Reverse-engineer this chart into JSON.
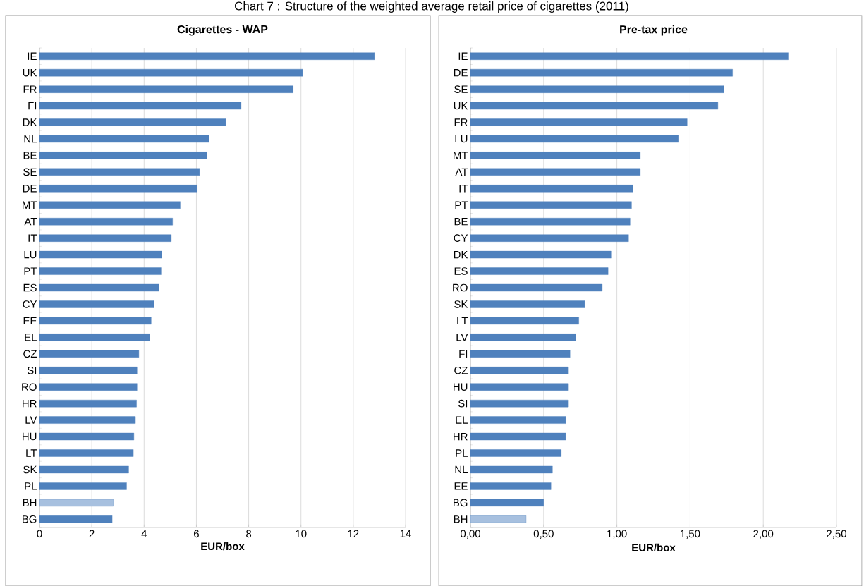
{
  "chart_data": [
    {
      "type": "bar",
      "orientation": "horizontal",
      "title": "Cigarettes - WAP",
      "xlabel": "EUR/box",
      "annotations": [
        "Chart 7 : Structure of the weighted average retail price of cigarettes (2011)"
      ],
      "categories": [
        "IE",
        "UK",
        "FR",
        "FI",
        "DK",
        "NL",
        "BE",
        "SE",
        "DE",
        "MT",
        "AT",
        "IT",
        "LU",
        "PT",
        "ES",
        "CY",
        "EE",
        "EL",
        "CZ",
        "SI",
        "RO",
        "HR",
        "LV",
        "HU",
        "LT",
        "SK",
        "PL",
        "BH",
        "BG"
      ],
      "values": [
        12.81,
        10.06,
        9.7,
        7.71,
        7.12,
        6.48,
        6.4,
        6.12,
        6.03,
        5.38,
        5.09,
        5.04,
        4.67,
        4.65,
        4.56,
        4.37,
        4.27,
        4.21,
        3.8,
        3.73,
        3.73,
        3.71,
        3.67,
        3.61,
        3.59,
        3.41,
        3.33,
        2.82,
        2.78
      ],
      "color": "#4f81bd",
      "colors": [
        "#4f81bd",
        "#4f81bd",
        "#4f81bd",
        "#4f81bd",
        "#4f81bd",
        "#4f81bd",
        "#4f81bd",
        "#4f81bd",
        "#4f81bd",
        "#4f81bd",
        "#4f81bd",
        "#4f81bd",
        "#4f81bd",
        "#4f81bd",
        "#4f81bd",
        "#4f81bd",
        "#4f81bd",
        "#4f81bd",
        "#4f81bd",
        "#4f81bd",
        "#4f81bd",
        "#4f81bd",
        "#4f81bd",
        "#4f81bd",
        "#4f81bd",
        "#4f81bd",
        "#4f81bd",
        "#a7c0df",
        "#4f81bd"
      ],
      "xlim": [
        0,
        14
      ],
      "xticks": [
        0,
        2,
        4,
        6,
        8,
        10,
        12,
        14
      ],
      "grid": "x"
    },
    {
      "type": "bar",
      "orientation": "horizontal",
      "title": "Pre-tax price",
      "xlabel": "EUR/box",
      "categories": [
        "IE",
        "DE",
        "SE",
        "UK",
        "FR",
        "LU",
        "MT",
        "AT",
        "IT",
        "PT",
        "BE",
        "CY",
        "DK",
        "ES",
        "RO",
        "SK",
        "LT",
        "LV",
        "FI",
        "CZ",
        "HU",
        "SI",
        "EL",
        "HR",
        "PL",
        "NL",
        "EE",
        "BG",
        "BH"
      ],
      "values": [
        2.17,
        1.79,
        1.73,
        1.69,
        1.48,
        1.42,
        1.16,
        1.16,
        1.11,
        1.1,
        1.09,
        1.08,
        0.96,
        0.94,
        0.9,
        0.78,
        0.74,
        0.72,
        0.68,
        0.67,
        0.67,
        0.67,
        0.65,
        0.65,
        0.62,
        0.56,
        0.55,
        0.5,
        0.38
      ],
      "color": "#4f81bd",
      "colors": [
        "#4f81bd",
        "#4f81bd",
        "#4f81bd",
        "#4f81bd",
        "#4f81bd",
        "#4f81bd",
        "#4f81bd",
        "#4f81bd",
        "#4f81bd",
        "#4f81bd",
        "#4f81bd",
        "#4f81bd",
        "#4f81bd",
        "#4f81bd",
        "#4f81bd",
        "#4f81bd",
        "#4f81bd",
        "#4f81bd",
        "#4f81bd",
        "#4f81bd",
        "#4f81bd",
        "#4f81bd",
        "#4f81bd",
        "#4f81bd",
        "#4f81bd",
        "#4f81bd",
        "#4f81bd",
        "#4f81bd",
        "#a7c0df"
      ],
      "xlim": [
        0,
        2.5
      ],
      "xticks": [
        {
          "value": 0,
          "label": "0,00"
        },
        {
          "value": 0.5,
          "label": "0,50"
        },
        {
          "value": 1.0,
          "label": "1,00"
        },
        {
          "value": 1.5,
          "label": "1,50"
        },
        {
          "value": 2.0,
          "label": "2,00"
        },
        {
          "value": 2.5,
          "label": "2,50"
        }
      ],
      "grid": "x"
    }
  ]
}
